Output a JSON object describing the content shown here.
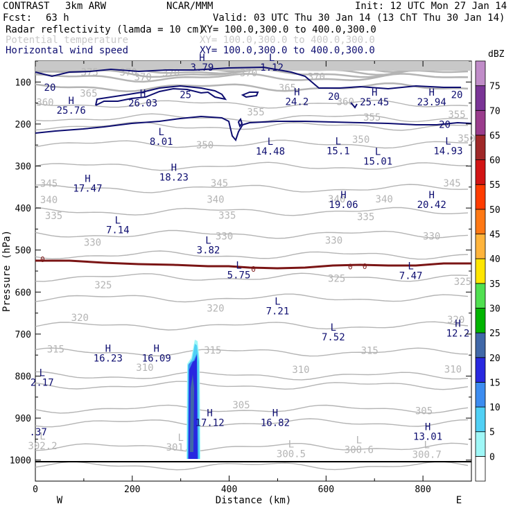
{
  "header": {
    "project": "CONTRAST",
    "model": "3km ARW",
    "org": "NCAR/MMM",
    "init": "Init: 12 UTC Mon 27 Jan 14",
    "fcst_label": "Fcst:",
    "fcst_value": "63 h",
    "valid": "Valid: 03 UTC Thu 30 Jan 14 (13 ChT Thu 30 Jan 14)",
    "fields": [
      {
        "name": "Radar reflectivity (lamda = 10 cm)",
        "xy": "XY= 100.0,300.0 to 400.0,300.0"
      },
      {
        "name": "Potential temperature",
        "xy": "XY= 100.0,300.0 to 400.0,300.0"
      },
      {
        "name": "Horizontal wind speed",
        "xy": "XY= 100.0,300.0 to 400.0,300.0"
      }
    ]
  },
  "colors": {
    "theta": "#b4b4b4",
    "wind": "#0d0d70",
    "zero": "#7a1414",
    "text_navy": "#0d0d70"
  },
  "chart_data": {
    "type": "cross-section",
    "xlabel": "Distance (km)",
    "ylabel": "Pressure (hPa)",
    "xlim": [
      0,
      900
    ],
    "ylim": [
      1050,
      50
    ],
    "x_ticks": [
      0,
      200,
      400,
      600,
      800
    ],
    "y_ticks": [
      100,
      200,
      300,
      400,
      500,
      600,
      700,
      800,
      900,
      1000
    ],
    "west_label": "W",
    "east_label": "E",
    "colorbar": {
      "unit": "dBZ",
      "levels": [
        0,
        5,
        10,
        15,
        20,
        25,
        30,
        35,
        40,
        45,
        50,
        55,
        60,
        65,
        70,
        75
      ],
      "colors": [
        "#ffffff",
        "#9ff7f7",
        "#50d0f5",
        "#3c8cf0",
        "#2828e0",
        "#4068a8",
        "#00b400",
        "#50e050",
        "#ffe600",
        "#ffb43c",
        "#ff7814",
        "#ff3c00",
        "#d21414",
        "#a02828",
        "#9a3c8c",
        "#7a3496",
        "#c08cc8"
      ]
    },
    "theta_labels": [
      {
        "x": 112,
        "p": 78,
        "t": "375"
      },
      {
        "x": 192,
        "p": 78,
        "t": "370"
      },
      {
        "x": 280,
        "p": 80,
        "t": "370"
      },
      {
        "x": 440,
        "p": 80,
        "t": "370"
      },
      {
        "x": 222,
        "p": 90,
        "t": "370"
      },
      {
        "x": 580,
        "p": 89,
        "t": "370"
      },
      {
        "x": 110,
        "p": 128,
        "t": "365"
      },
      {
        "x": 520,
        "p": 115,
        "t": "365"
      },
      {
        "x": 20,
        "p": 150,
        "t": "360"
      },
      {
        "x": 640,
        "p": 148,
        "t": "360"
      },
      {
        "x": 455,
        "p": 173,
        "t": "355"
      },
      {
        "x": 695,
        "p": 185,
        "t": "355"
      },
      {
        "x": 870,
        "p": 179,
        "t": "355"
      },
      {
        "x": 350,
        "p": 251,
        "t": "350"
      },
      {
        "x": 672,
        "p": 238,
        "t": "350"
      },
      {
        "x": 890,
        "p": 236,
        "t": "350"
      },
      {
        "x": 28,
        "p": 343,
        "t": "345"
      },
      {
        "x": 380,
        "p": 342,
        "t": "345"
      },
      {
        "x": 860,
        "p": 342,
        "t": "345"
      },
      {
        "x": 28,
        "p": 382,
        "t": "340"
      },
      {
        "x": 372,
        "p": 381,
        "t": "340"
      },
      {
        "x": 622,
        "p": 380,
        "t": "340"
      },
      {
        "x": 720,
        "p": 380,
        "t": "340"
      },
      {
        "x": 38,
        "p": 420,
        "t": "335"
      },
      {
        "x": 396,
        "p": 419,
        "t": "335"
      },
      {
        "x": 682,
        "p": 422,
        "t": "335"
      },
      {
        "x": 118,
        "p": 483,
        "t": "330"
      },
      {
        "x": 390,
        "p": 468,
        "t": "330"
      },
      {
        "x": 616,
        "p": 478,
        "t": "330"
      },
      {
        "x": 818,
        "p": 468,
        "t": "330"
      },
      {
        "x": 140,
        "p": 585,
        "t": "325"
      },
      {
        "x": 622,
        "p": 569,
        "t": "325"
      },
      {
        "x": 882,
        "p": 576,
        "t": "325"
      },
      {
        "x": 92,
        "p": 662,
        "t": "320"
      },
      {
        "x": 372,
        "p": 640,
        "t": "320"
      },
      {
        "x": 868,
        "p": 667,
        "t": "320"
      },
      {
        "x": 42,
        "p": 737,
        "t": "315"
      },
      {
        "x": 366,
        "p": 740,
        "t": "315"
      },
      {
        "x": 690,
        "p": 741,
        "t": "315"
      },
      {
        "x": 226,
        "p": 781,
        "t": "310"
      },
      {
        "x": 548,
        "p": 786,
        "t": "310"
      },
      {
        "x": 862,
        "p": 785,
        "t": "310"
      },
      {
        "x": 425,
        "p": 870,
        "t": "305"
      },
      {
        "x": 802,
        "p": 884,
        "t": "305"
      }
    ],
    "theta_lows": [
      {
        "x": 300,
        "p": 977,
        "label": "301.2"
      },
      {
        "x": 528,
        "p": 993,
        "label": "300.5"
      },
      {
        "x": 668,
        "p": 983,
        "label": "300.6"
      },
      {
        "x": 808,
        "p": 995,
        "label": "300.7"
      },
      {
        "x": 15,
        "p": 974,
        "label": "302.2"
      }
    ],
    "wind_extrema": [
      {
        "x": 344,
        "p": 73,
        "type": "H",
        "value": "3.79"
      },
      {
        "x": 488,
        "p": 73,
        "type": "L",
        "value": "1.12"
      },
      {
        "x": 74,
        "p": 175,
        "type": "H",
        "value": "25.76"
      },
      {
        "x": 222,
        "p": 158,
        "type": "H",
        "value": "26.03"
      },
      {
        "x": 540,
        "p": 155,
        "type": "H",
        "value": "24.2"
      },
      {
        "x": 700,
        "p": 156,
        "type": "H",
        "value": "25.45"
      },
      {
        "x": 818,
        "p": 156,
        "type": "H",
        "value": "23.94"
      },
      {
        "x": 260,
        "p": 250,
        "type": "L",
        "value": "8.01"
      },
      {
        "x": 485,
        "p": 273,
        "type": "L",
        "value": "14.48"
      },
      {
        "x": 625,
        "p": 272,
        "type": "L",
        "value": "15.1"
      },
      {
        "x": 707,
        "p": 297,
        "type": "L",
        "value": "15.01"
      },
      {
        "x": 852,
        "p": 272,
        "type": "L",
        "value": "14.93"
      },
      {
        "x": 108,
        "p": 361,
        "type": "H",
        "value": "17.47"
      },
      {
        "x": 286,
        "p": 335,
        "type": "H",
        "value": "18.23"
      },
      {
        "x": 636,
        "p": 400,
        "type": "H",
        "value": "19.06"
      },
      {
        "x": 818,
        "p": 400,
        "type": "H",
        "value": "20.42"
      },
      {
        "x": 170,
        "p": 460,
        "type": "L",
        "value": "7.14"
      },
      {
        "x": 357,
        "p": 508,
        "type": "L",
        "value": "3.82"
      },
      {
        "x": 420,
        "p": 567,
        "type": "L",
        "value": "5.75"
      },
      {
        "x": 775,
        "p": 569,
        "type": "L",
        "value": "7.47"
      },
      {
        "x": 500,
        "p": 653,
        "type": "L",
        "value": "7.21"
      },
      {
        "x": 615,
        "p": 715,
        "type": "L",
        "value": "7.52"
      },
      {
        "x": 872,
        "p": 706,
        "type": "H",
        "value": "12.2"
      },
      {
        "x": 150,
        "p": 765,
        "type": "H",
        "value": "16.23"
      },
      {
        "x": 250,
        "p": 765,
        "type": "H",
        "value": "16.09"
      },
      {
        "x": 14,
        "p": 823,
        "type": "L",
        "value": "2.17"
      },
      {
        "x": 360,
        "p": 919,
        "type": "H",
        "value": "17.12"
      },
      {
        "x": 495,
        "p": 919,
        "type": "H",
        "value": "16.82"
      },
      {
        "x": 810,
        "p": 952,
        "type": "H",
        "value": "13.01"
      },
      {
        "x": 6,
        "p": 941,
        "type": "",
        "value": ".37"
      }
    ],
    "wind_contour_labels": [
      {
        "x": 30,
        "p": 114,
        "t": "20"
      },
      {
        "x": 310,
        "p": 132,
        "t": "25"
      },
      {
        "x": 616,
        "p": 136,
        "t": "20"
      },
      {
        "x": 870,
        "p": 132,
        "t": "20"
      },
      {
        "x": 845,
        "p": 203,
        "t": "20"
      }
    ],
    "zero_labels": [
      {
        "x": 15,
        "p": 524,
        "t": "0"
      },
      {
        "x": 450,
        "p": 547,
        "t": "0"
      },
      {
        "x": 650,
        "p": 541,
        "t": "0"
      },
      {
        "x": 680,
        "p": 540,
        "t": "0"
      }
    ]
  }
}
